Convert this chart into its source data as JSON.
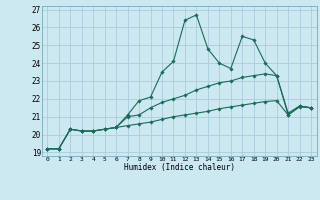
{
  "title": "",
  "xlabel": "Humidex (Indice chaleur)",
  "bg_color": "#cce8f0",
  "grid_color": "#aaccdd",
  "line_color": "#1a6b5a",
  "xlim": [
    -0.5,
    23.5
  ],
  "ylim": [
    18.8,
    27.2
  ],
  "yticks": [
    19,
    20,
    21,
    22,
    23,
    24,
    25,
    26,
    27
  ],
  "xticks": [
    0,
    1,
    2,
    3,
    4,
    5,
    6,
    7,
    8,
    9,
    10,
    11,
    12,
    13,
    14,
    15,
    16,
    17,
    18,
    19,
    20,
    21,
    22,
    23
  ],
  "series": [
    [
      19.2,
      19.2,
      20.3,
      20.2,
      20.2,
      20.3,
      20.4,
      21.1,
      21.9,
      22.1,
      23.5,
      24.1,
      26.4,
      26.7,
      24.8,
      24.0,
      23.7,
      25.5,
      25.3,
      24.0,
      23.3,
      21.1,
      21.6,
      21.5
    ],
    [
      19.2,
      19.2,
      20.3,
      20.2,
      20.2,
      20.3,
      20.4,
      21.0,
      21.1,
      21.5,
      21.8,
      22.0,
      22.2,
      22.5,
      22.7,
      22.9,
      23.0,
      23.2,
      23.3,
      23.4,
      23.3,
      21.2,
      21.6,
      21.5
    ],
    [
      19.2,
      19.2,
      20.3,
      20.2,
      20.2,
      20.3,
      20.4,
      20.5,
      20.6,
      20.7,
      20.85,
      21.0,
      21.1,
      21.2,
      21.3,
      21.45,
      21.55,
      21.65,
      21.75,
      21.85,
      21.9,
      21.1,
      21.55,
      21.5
    ]
  ]
}
